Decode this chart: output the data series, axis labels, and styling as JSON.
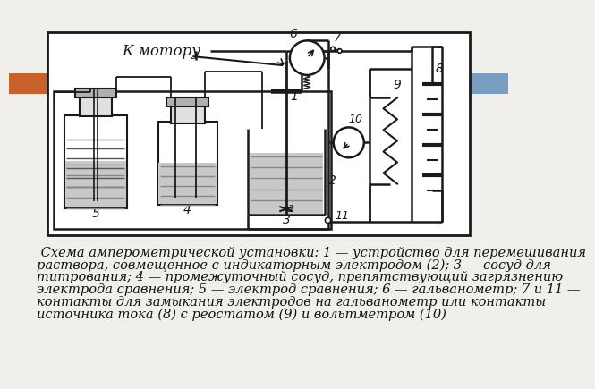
{
  "bg_color": "#f0efeb",
  "diagram_bg": "#ffffff",
  "line_color": "#1a1a1a",
  "caption_line1": " Схема амперометрической установки: 1 — устройство для перемешивания",
  "caption_line2": "раствора, совмещенное с индикаторным электродом (2); 3 — сосуд для",
  "caption_line3": "титрования; 4 — промежуточный сосуд, препятствующий загрязнению",
  "caption_line4": "электрода сравнения; 5 — электрод сравнения; 6 — гальванометр; 7 и 11 —",
  "caption_line5": "контакты для замыкания электродов на гальванометр или контакты",
  "caption_line6": "источника тока (8) с реостатом (9) и вольтметром (10)",
  "accent_left_color": "#c8622a",
  "accent_right_color": "#7a9ec0",
  "motor_text": "К мотору",
  "lw": 1.8,
  "font_size_caption": 10.5
}
